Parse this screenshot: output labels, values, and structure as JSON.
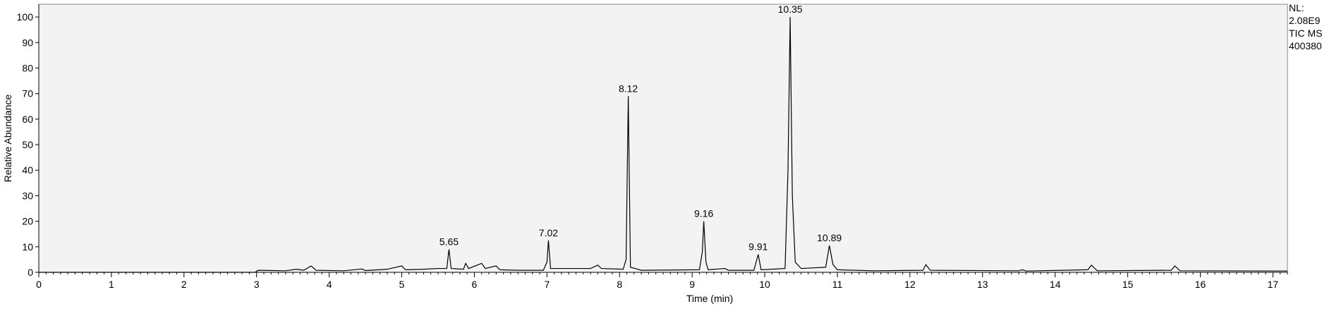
{
  "chart_data": {
    "type": "line",
    "xlabel": "Time (min)",
    "ylabel": "Relative Abundance",
    "info": [
      "NL:",
      "2.08E9",
      "TIC  MS",
      "400380-"
    ],
    "xlim": [
      0,
      17.2
    ],
    "ylim": [
      0,
      105
    ],
    "xticks": [
      0,
      1,
      2,
      3,
      4,
      5,
      6,
      7,
      8,
      9,
      10,
      11,
      12,
      13,
      14,
      15,
      16,
      17
    ],
    "yticks": [
      0,
      10,
      20,
      30,
      40,
      50,
      60,
      70,
      80,
      90,
      100
    ],
    "color": "#000000",
    "x": [
      0,
      2.98,
      3.02,
      3.4,
      3.55,
      3.65,
      3.75,
      3.82,
      4.2,
      4.45,
      4.5,
      4.8,
      5.0,
      5.05,
      5.3,
      5.5,
      5.62,
      5.65,
      5.68,
      5.85,
      5.88,
      5.92,
      6.1,
      6.15,
      6.3,
      6.35,
      6.6,
      6.95,
      7.0,
      7.02,
      7.05,
      7.15,
      7.6,
      7.7,
      7.75,
      8.05,
      8.09,
      8.12,
      8.15,
      8.3,
      9.1,
      9.14,
      9.16,
      9.19,
      9.22,
      9.45,
      9.5,
      9.85,
      9.91,
      9.95,
      10.28,
      10.32,
      10.35,
      10.38,
      10.42,
      10.5,
      10.84,
      10.89,
      10.94,
      11.0,
      11.5,
      12.18,
      12.22,
      12.28,
      13.5,
      13.55,
      13.6,
      14.45,
      14.5,
      14.58,
      15.6,
      15.65,
      15.72,
      17.2
    ],
    "values": [
      0,
      0,
      0.8,
      0.6,
      1.2,
      0.8,
      2.5,
      0.8,
      0.6,
      1.3,
      0.7,
      1.2,
      2.5,
      1,
      1.2,
      1.5,
      1.5,
      9,
      1.5,
      1.2,
      3.5,
      1.5,
      3.5,
      1.5,
      2.5,
      1,
      0.8,
      0.8,
      4,
      12.5,
      1.5,
      1.5,
      1.5,
      2.8,
      1.5,
      1.2,
      5,
      69,
      2,
      0.8,
      1,
      8,
      20,
      4,
      1,
      1.5,
      0.8,
      0.8,
      7,
      1,
      1.5,
      40,
      100,
      30,
      4,
      1.5,
      2,
      10.5,
      3,
      1,
      0.6,
      0.8,
      3,
      0.8,
      0.6,
      1,
      0.5,
      1,
      2.8,
      0.6,
      0.8,
      2.5,
      0.6,
      0.5
    ],
    "peaks": [
      {
        "x": 5.65,
        "y": 9
      },
      {
        "x": 7.02,
        "y": 12.5
      },
      {
        "x": 8.12,
        "y": 69
      },
      {
        "x": 9.16,
        "y": 20
      },
      {
        "x": 9.91,
        "y": 7
      },
      {
        "x": 10.35,
        "y": 100
      },
      {
        "x": 10.89,
        "y": 10.5
      }
    ]
  }
}
